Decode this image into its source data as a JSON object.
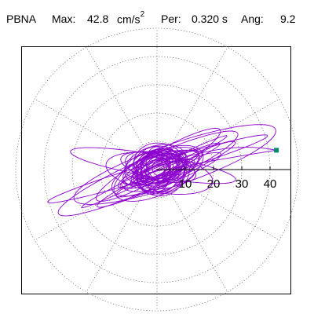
{
  "header": {
    "station": "PBNA",
    "max_label": "Max:",
    "max_value": "42.8",
    "max_unit_base": "cm/s",
    "max_unit_exp": "2",
    "per_label": "Per:",
    "per_value": "0.320 s",
    "ang_label": "Ang:",
    "ang_value": "9.2"
  },
  "chart_data": {
    "type": "scatter",
    "plot_kind": "polar",
    "title": "",
    "xlabel": "",
    "ylabel": "",
    "radial_ticks": [
      10,
      20,
      30,
      40
    ],
    "radial_tick_labels": [
      "10",
      "20",
      "30",
      "40"
    ],
    "radial_range": [
      0,
      50
    ],
    "grid": true,
    "grid_style": "dotted",
    "spoke_step_deg": 30,
    "max_marker": {
      "angle_deg": 9.2,
      "radius": 42.8,
      "color": "#008b6b"
    },
    "trace_color": "#8b00cc",
    "trace_shape": "loops",
    "trace_description": "Response orbit loops elongated along ~15–30 degree direction, dense near origin"
  }
}
